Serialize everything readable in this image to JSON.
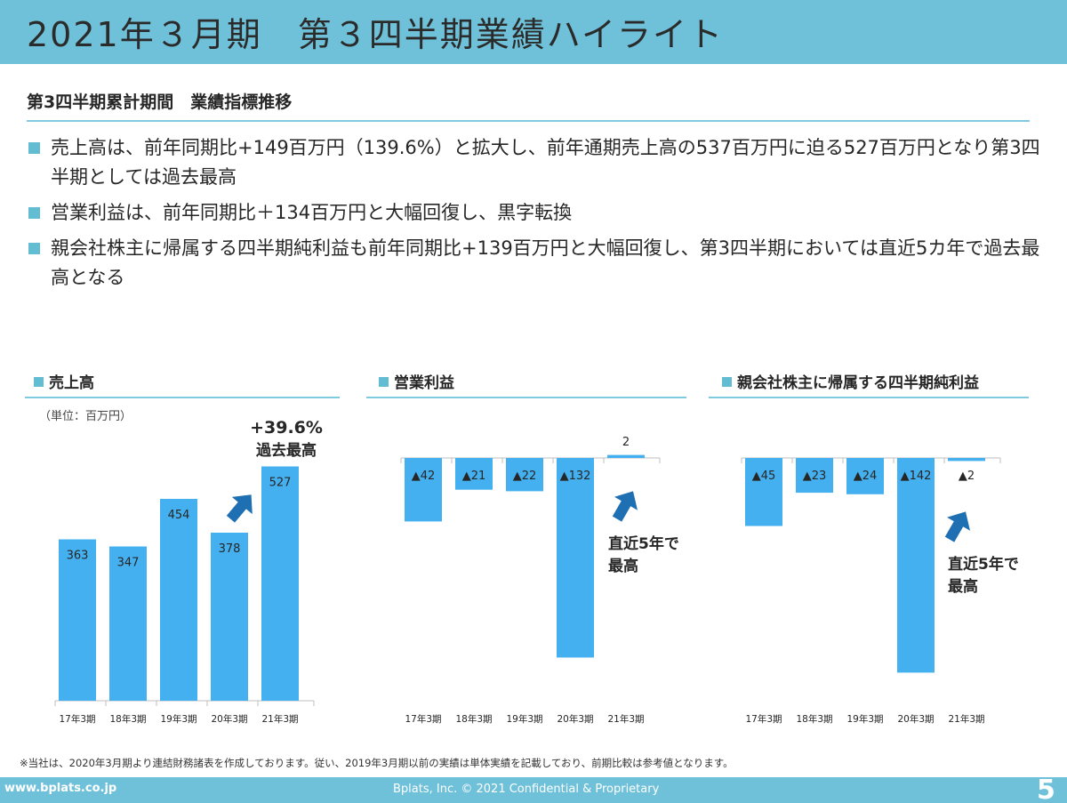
{
  "header": {
    "title": "2021年３月期　第３四半期業績ハイライト"
  },
  "section": {
    "title": "第3四半期累計期間　業績指標推移"
  },
  "bullets": [
    {
      "text": "売上高は、前年同期比+149百万円（139.6%）と拡大し、前年通期売上高の537百万円に迫る527百万円となり第3四半期としては過去最高"
    },
    {
      "text": "営業利益は、前年同期比＋134百万円と大幅回復し、黒字転換"
    },
    {
      "text": "親会社株主に帰属する四半期純利益も前年同期比+139百万円と大幅回復し、第3四半期においては直近5カ年で過去最高となる"
    }
  ],
  "colors": {
    "accent": "#6fc1d9",
    "bar": "#45b0f0",
    "arrow": "#1f6fb3",
    "axis": "#bfbfbf"
  },
  "charts": {
    "unit": "（単位：百万円）",
    "sales": {
      "title": "売上高",
      "callout_value": "+39.6%",
      "callout_text": "過去最高"
    },
    "op": {
      "title": "営業利益",
      "callout_line1": "直近5年で",
      "callout_line2": "最高"
    },
    "net": {
      "title": "親会社株主に帰属する四半期純利益",
      "callout_line1": "直近5年で",
      "callout_line2": "最高"
    }
  },
  "chart_data": [
    {
      "type": "bar",
      "title": "売上高",
      "unit": "百万円",
      "categories": [
        "17年3期",
        "18年3期",
        "19年3期",
        "20年3期",
        "21年3期"
      ],
      "values": [
        363,
        347,
        454,
        378,
        527
      ],
      "labels": [
        "363",
        "347",
        "454",
        "378",
        "527"
      ]
    },
    {
      "type": "bar",
      "title": "営業利益",
      "unit": "百万円",
      "categories": [
        "17年3期",
        "18年3期",
        "19年3期",
        "20年3期",
        "21年3期"
      ],
      "values": [
        -42,
        -21,
        -22,
        -132,
        2
      ],
      "labels": [
        "▲42",
        "▲21",
        "▲22",
        "▲132",
        "2"
      ]
    },
    {
      "type": "bar",
      "title": "親会社株主に帰属する四半期純利益",
      "unit": "百万円",
      "categories": [
        "17年3期",
        "18年3期",
        "19年3期",
        "20年3期",
        "21年3期"
      ],
      "values": [
        -45,
        -23,
        -24,
        -142,
        -2
      ],
      "labels": [
        "▲45",
        "▲23",
        "▲24",
        "▲142",
        "▲2"
      ]
    }
  ],
  "footnote": "※当社は、2020年3月期より連結財務諸表を作成しております。従い、2019年3月期以前の実績は単体実績を記載しており、前期比較は参考値となります。",
  "footer": {
    "url": "www.bplats.co.jp",
    "copyright": "Bplats, Inc. © 2021 Confidential & Proprietary",
    "page": "5"
  }
}
